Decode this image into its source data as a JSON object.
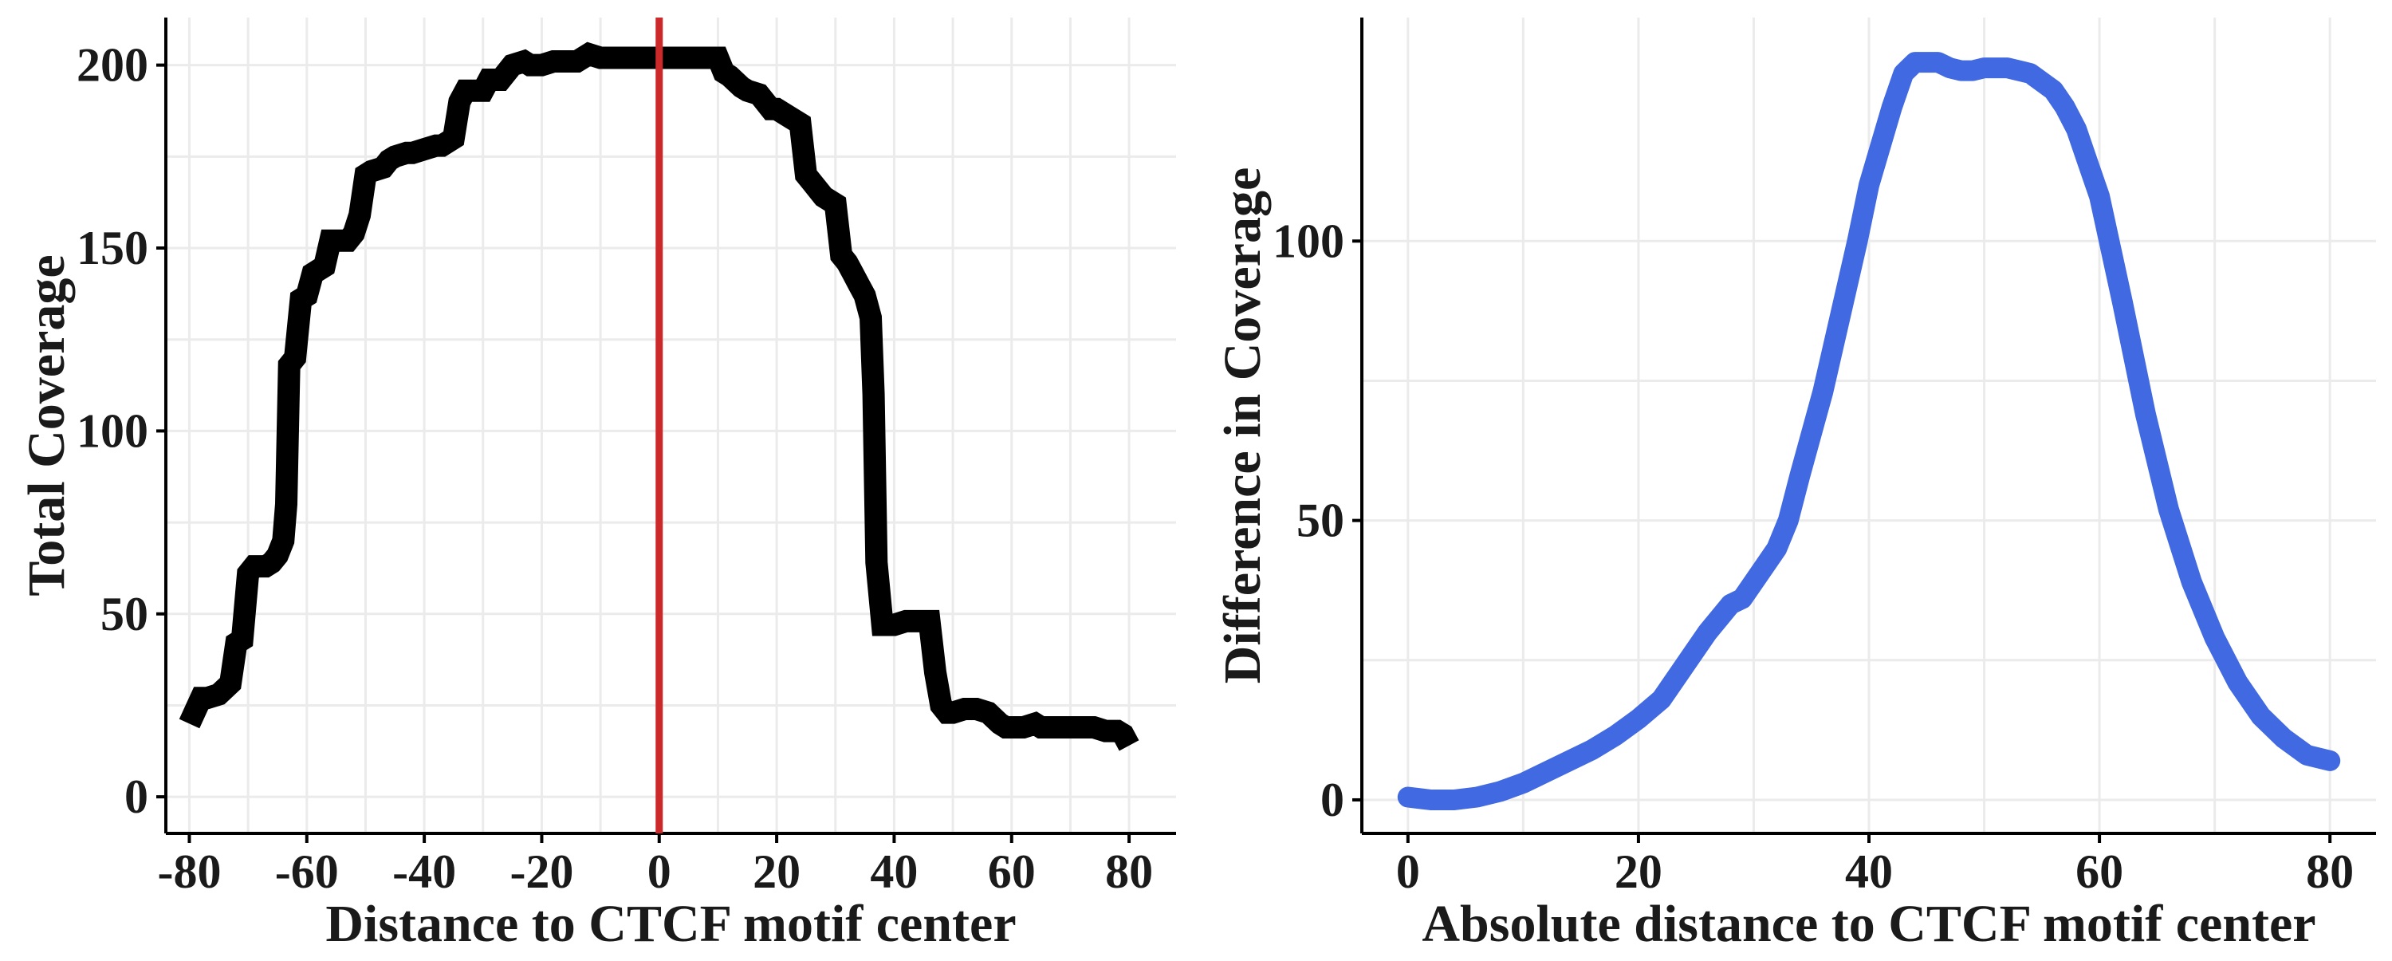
{
  "colors": {
    "left_series": "#000000",
    "right_series": "#4169E1",
    "vline": "#CC2A2A",
    "grid": "#EBEBEB"
  },
  "chart_data": [
    {
      "type": "line",
      "xlabel": "Distance to CTCF motif center",
      "ylabel": "Total Coverage",
      "xlim": [
        -84,
        88
      ],
      "ylim": [
        -10,
        213
      ],
      "x_ticks": [
        -80,
        -60,
        -40,
        -20,
        0,
        20,
        40,
        60,
        80
      ],
      "x_tick_labels": [
        "-80",
        "-60",
        "-40",
        "-20",
        "0",
        "20",
        "40",
        "60",
        "80"
      ],
      "y_ticks": [
        0,
        50,
        100,
        150,
        200
      ],
      "y_tick_labels": [
        "0",
        "50",
        "100",
        "150",
        "200"
      ],
      "grid": true,
      "vline": 0,
      "series": [
        {
          "x": [
            -80,
            -78,
            -77,
            -75,
            -73,
            -72,
            -71,
            -70,
            -69,
            -67,
            -66,
            -65,
            -64,
            -63.5,
            -63,
            -62,
            -61,
            -60,
            -59,
            -58,
            -57,
            -56,
            -55,
            -54,
            -53,
            -52,
            -51,
            -50,
            -49,
            -47,
            -46,
            -45,
            -43,
            -42,
            -40,
            -38,
            -37,
            -35,
            -34,
            -33,
            -32,
            -30,
            -29,
            -27,
            -25,
            -23,
            -22,
            -20,
            -18,
            -16,
            -14,
            -12,
            -10,
            -8,
            -6,
            -4,
            -2,
            0,
            2,
            4,
            6,
            8,
            10,
            11,
            12,
            14,
            15,
            17,
            19,
            20,
            22,
            24,
            25,
            26,
            28,
            30,
            31,
            32,
            33,
            34,
            35,
            36,
            36.5,
            37,
            38,
            40,
            42,
            44,
            46,
            47,
            48,
            49,
            50,
            52,
            54,
            56,
            58,
            59,
            60,
            62,
            64,
            65,
            66,
            68,
            70,
            72,
            74,
            76,
            78,
            79,
            80
          ],
          "values": [
            20,
            27,
            27,
            28,
            31,
            42,
            43,
            61,
            63,
            63,
            64,
            66,
            70,
            80,
            118,
            120,
            136,
            137,
            143,
            144,
            145,
            152,
            152,
            152,
            152,
            154,
            159,
            170,
            171,
            172,
            174,
            175,
            176,
            176,
            177,
            178,
            178,
            180,
            190,
            193,
            193,
            193,
            196,
            196,
            200,
            201,
            200,
            200,
            201,
            201,
            201,
            203,
            202,
            202,
            202,
            202,
            202,
            202,
            202,
            202,
            202,
            202,
            202,
            198,
            197,
            194,
            193,
            192,
            188,
            188,
            186,
            184,
            170,
            168,
            164,
            162,
            148,
            146,
            143,
            140,
            137,
            131,
            110,
            64,
            47,
            47,
            48,
            48,
            48,
            34,
            25,
            23,
            23,
            24,
            24,
            23,
            20,
            19,
            19,
            19,
            20,
            19,
            19,
            19,
            19,
            19,
            19,
            18,
            18,
            17,
            14
          ]
        }
      ]
    },
    {
      "type": "line",
      "xlabel": "Absolute distance to CTCF motif center",
      "ylabel": "Difference in Coverage",
      "xlim": [
        -4,
        84
      ],
      "ylim": [
        -6,
        140
      ],
      "x_ticks": [
        0,
        20,
        40,
        60,
        80
      ],
      "x_tick_labels": [
        "0",
        "20",
        "40",
        "60",
        "80"
      ],
      "y_ticks": [
        0,
        50,
        100
      ],
      "y_tick_labels": [
        "0",
        "50",
        "100"
      ],
      "grid": true,
      "series": [
        {
          "x": [
            0,
            2,
            4,
            6,
            8,
            10,
            12,
            14,
            16,
            18,
            20,
            22,
            24,
            26,
            28,
            29,
            30,
            32,
            33,
            34,
            36,
            38,
            39,
            40,
            42,
            43,
            44,
            45,
            46,
            47,
            48,
            49,
            50,
            51,
            52,
            54,
            56,
            57,
            58,
            59,
            60,
            62,
            64,
            66,
            68,
            70,
            72,
            74,
            76,
            78,
            80
          ],
          "values": [
            0.5,
            0,
            0,
            0.5,
            1.5,
            3,
            5,
            7,
            9,
            11.5,
            14.5,
            18,
            24,
            30,
            35,
            36,
            39,
            45,
            50,
            58,
            73,
            91,
            100,
            110,
            124,
            130,
            132,
            132,
            132,
            131,
            130.5,
            130.5,
            131,
            131,
            131,
            130,
            127,
            124,
            120,
            114,
            108,
            89,
            69,
            52,
            39,
            29,
            21,
            15,
            11,
            8,
            7
          ]
        }
      ]
    }
  ]
}
